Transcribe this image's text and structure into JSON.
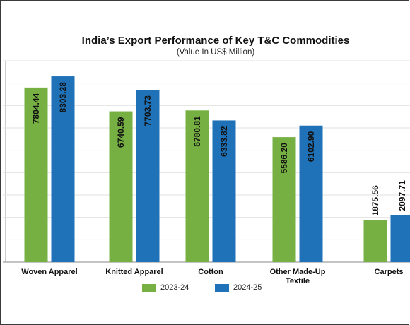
{
  "chart_data": {
    "type": "bar",
    "title": "India’s Export Performance of Key T&C Commodities",
    "subtitle": "(Value In US$ Million)",
    "categories": [
      "Woven Apparel",
      "Knitted Apparel",
      "Cotton",
      "Other Made-Up Textile",
      "Carpets"
    ],
    "category_lines": [
      [
        "Woven Apparel"
      ],
      [
        "Knitted Apparel"
      ],
      [
        "Cotton"
      ],
      [
        "Other Made-Up",
        "Textile"
      ],
      [
        "Carpets"
      ]
    ],
    "series": [
      {
        "name": "2023-24",
        "values": [
          7804.44,
          6740.59,
          6780.81,
          5586.2,
          1875.56
        ],
        "labels": [
          "7804.44",
          "6740.59",
          "6780.81",
          "5586.20",
          "1875.56"
        ]
      },
      {
        "name": "2024-25",
        "values": [
          8303.28,
          7703.73,
          6333.82,
          6102.9,
          2097.71
        ],
        "labels": [
          "8303.28",
          "7703.73",
          "6333.82",
          "6102.90",
          "2097.71"
        ]
      }
    ],
    "ylim": [
      0,
      9000
    ],
    "grid": true,
    "legend_position": "bottom",
    "colors": {
      "2023-24": "#76b043",
      "2024-25": "#1f72b8"
    }
  }
}
